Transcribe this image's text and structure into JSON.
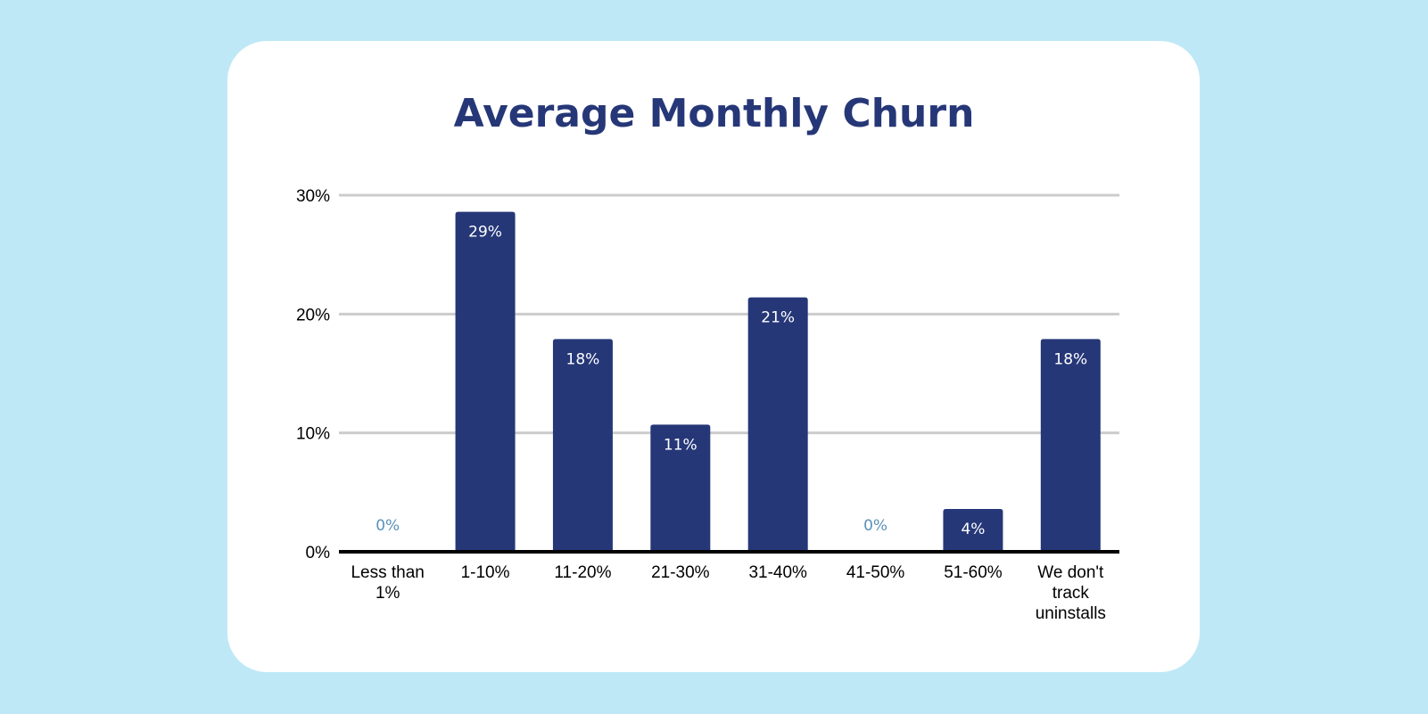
{
  "chart_data": {
    "type": "bar",
    "title": "Average Monthly Churn",
    "categories": [
      [
        "Less than",
        "1%"
      ],
      [
        "1-10%"
      ],
      [
        "11-20%"
      ],
      [
        "21-30%"
      ],
      [
        "31-40%"
      ],
      [
        "41-50%"
      ],
      [
        "51-60%"
      ],
      [
        "We don't",
        "track",
        "uninstalls"
      ]
    ],
    "values": [
      0,
      28.6,
      17.9,
      10.7,
      21.4,
      0,
      3.6,
      17.9
    ],
    "value_labels": [
      "0%",
      "29%",
      "18%",
      "11%",
      "21%",
      "0%",
      "4%",
      "18%"
    ],
    "yticks": [
      0,
      10,
      20,
      30
    ],
    "ytick_labels": [
      "0%",
      "10%",
      "20%",
      "30%"
    ],
    "ylim": [
      0,
      30
    ],
    "xlabel": "",
    "ylabel": "",
    "grid": true,
    "legend": "none",
    "colors": {
      "bar": "#263778",
      "title": "#263778",
      "gridline": "#cccccc",
      "axis": "#000000",
      "zero_label": "#5a91b8",
      "background": "#bfe8f7",
      "card": "#ffffff"
    }
  }
}
